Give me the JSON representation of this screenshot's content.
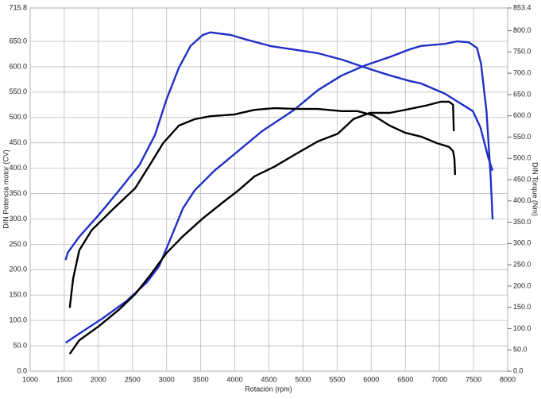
{
  "chart_data": {
    "type": "line",
    "x_label": "Rotación (rpm)",
    "y_label": "DIN Potencia motor (CV)",
    "y2_label": "DIN Torque (Nm)",
    "xlim": [
      1000,
      8000
    ],
    "xticks": [
      1000,
      1500,
      2000,
      2500,
      3000,
      3500,
      4000,
      4500,
      5000,
      5500,
      6000,
      6500,
      7000,
      7500,
      8000
    ],
    "ylim": [
      0,
      715.8
    ],
    "yticks": [
      {
        "value": 0,
        "label": "0.0"
      },
      {
        "value": 50,
        "label": "50.0"
      },
      {
        "value": 100,
        "label": "100.0"
      },
      {
        "value": 150,
        "label": "150.0"
      },
      {
        "value": 200,
        "label": "200.0"
      },
      {
        "value": 250,
        "label": "250.0"
      },
      {
        "value": 300,
        "label": "300.0"
      },
      {
        "value": 350,
        "label": "350.0"
      },
      {
        "value": 400,
        "label": "400.0"
      },
      {
        "value": 450,
        "label": "450.0"
      },
      {
        "value": 500,
        "label": "500.0"
      },
      {
        "value": 550,
        "label": "550.0"
      },
      {
        "value": 600,
        "label": "600.0"
      },
      {
        "value": 650,
        "label": "650.0"
      },
      715.8
    ],
    "y2lim": [
      0,
      853.4
    ],
    "y2ticks": [
      {
        "value": 0,
        "label": "0.0"
      },
      {
        "value": 50,
        "label": "50.0"
      },
      {
        "value": 100,
        "label": "100.0"
      },
      {
        "value": 150,
        "label": "150.0"
      },
      {
        "value": 200,
        "label": "200.0"
      },
      {
        "value": 250,
        "label": "250.0"
      },
      {
        "value": 300,
        "label": "300.0"
      },
      {
        "value": 350,
        "label": "350.0"
      },
      {
        "value": 400,
        "label": "400.0"
      },
      {
        "value": 450,
        "label": "450.0"
      },
      {
        "value": 500,
        "label": "500.0"
      },
      {
        "value": 550,
        "label": "550.0"
      },
      {
        "value": 600,
        "label": "600.0"
      },
      {
        "value": 650,
        "label": "650.0"
      },
      {
        "value": 700,
        "label": "700.0"
      },
      {
        "value": 750,
        "label": "750.0"
      },
      {
        "value": 800,
        "label": "800.0"
      },
      853.4
    ],
    "grid": true,
    "series": [
      {
        "color": "#1f2fc8",
        "axis": "y2",
        "x": [
          1520,
          1550,
          1720,
          2010,
          2300,
          2600,
          2830,
          3000,
          3180,
          3350,
          3530,
          3640,
          3940,
          4170,
          4520,
          4980,
          5220,
          5570,
          5920,
          6270,
          6560,
          6730,
          7080,
          7310,
          7490,
          7600,
          7720,
          7780
        ],
        "values": [
          261,
          278,
          316,
          368,
          424,
          484,
          555,
          639,
          713,
          764,
          790,
          796,
          790,
          779,
          764,
          753,
          747,
          732,
          713,
          695,
          682,
          676,
          652,
          629,
          611,
          573,
          499,
          471
        ]
      },
      {
        "color": "#1f2fc8",
        "x": [
          1520,
          1720,
          2070,
          2420,
          2710,
          2890,
          3060,
          3240,
          3410,
          3700,
          4050,
          4400,
          4870,
          5220,
          5570,
          5920,
          6270,
          6560,
          6730,
          7080,
          7260,
          7430,
          7550,
          7610,
          7690,
          7750,
          7780
        ],
        "values": [
          56,
          74,
          105,
          139,
          175,
          207,
          262,
          321,
          356,
          395,
          434,
          473,
          515,
          554,
          583,
          603,
          619,
          634,
          641,
          645,
          650,
          648,
          637,
          606,
          512,
          387,
          299
        ]
      },
      {
        "color": "#000000",
        "axis": "y2",
        "x": [
          1580,
          1630,
          1720,
          1900,
          2190,
          2540,
          2770,
          2950,
          3180,
          3410,
          3640,
          3990,
          4290,
          4580,
          4930,
          5220,
          5570,
          5800,
          6030,
          6270,
          6500,
          6730,
          6960,
          7140,
          7200,
          7220,
          7230
        ],
        "values": [
          149,
          218,
          284,
          331,
          377,
          430,
          489,
          536,
          577,
          592,
          599,
          603,
          614,
          618,
          616,
          616,
          611,
          611,
          601,
          577,
          560,
          551,
          536,
          527,
          517,
          499,
          461
        ]
      },
      {
        "color": "#000000",
        "x": [
          1580,
          1720,
          2010,
          2300,
          2540,
          2770,
          3000,
          3240,
          3530,
          3820,
          4050,
          4290,
          4580,
          4870,
          5220,
          5510,
          5740,
          5980,
          6270,
          6500,
          6790,
          7020,
          7140,
          7200,
          7210
        ],
        "values": [
          34,
          61,
          89,
          121,
          152,
          191,
          233,
          266,
          301,
          332,
          356,
          384,
          403,
          426,
          453,
          468,
          497,
          509,
          509,
          515,
          523,
          531,
          531,
          525,
          473
        ]
      }
    ]
  }
}
